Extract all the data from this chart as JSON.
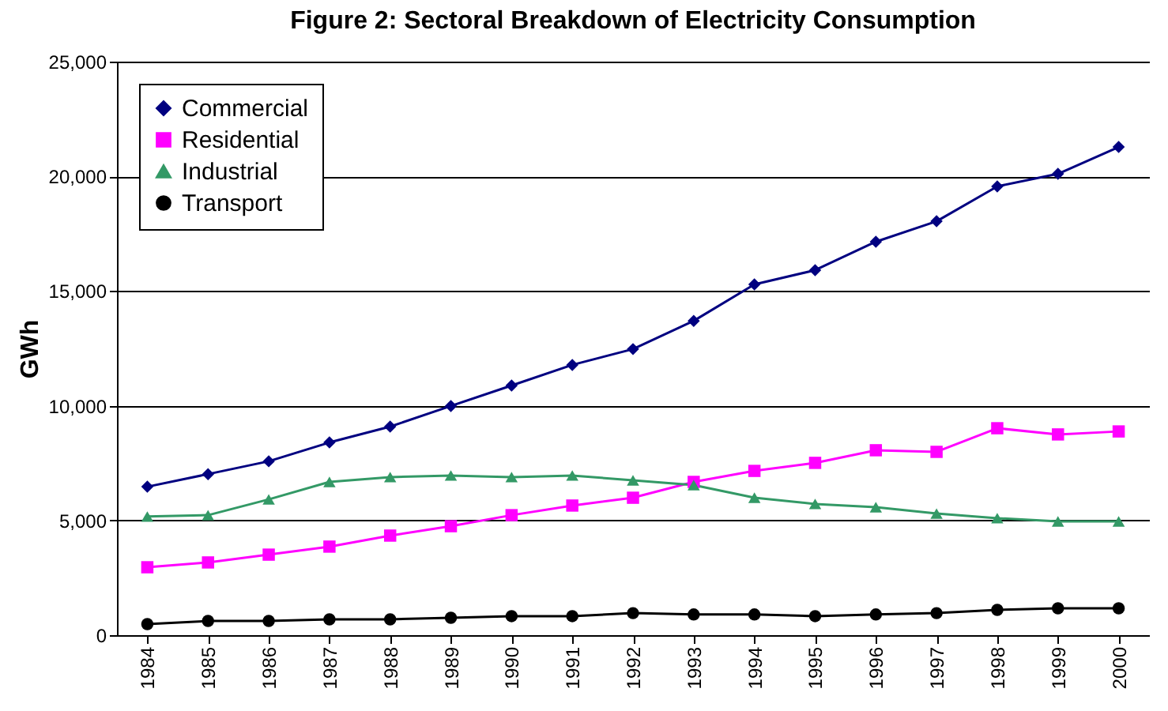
{
  "chart_data": {
    "type": "line",
    "title": "Figure 2: Sectoral Breakdown of Electricity Consumption",
    "ylabel": "GWh",
    "categories": [
      "1984",
      "1985",
      "1986",
      "1987",
      "1988",
      "1989",
      "1990",
      "1991",
      "1992",
      "1993",
      "1994",
      "1995",
      "1996",
      "1997",
      "1998",
      "1999",
      "2000"
    ],
    "series": [
      {
        "name": "Commercial",
        "color": "#000080",
        "marker": "diamond",
        "values": [
          6470,
          7020,
          7580,
          8400,
          9090,
          9990,
          10880,
          11780,
          12470,
          13700,
          15290,
          15910,
          17150,
          18040,
          19560,
          20110,
          21280
        ]
      },
      {
        "name": "Residential",
        "color": "#ff00ff",
        "marker": "square",
        "values": [
          2960,
          3170,
          3510,
          3860,
          4340,
          4750,
          5230,
          5650,
          5990,
          6680,
          7160,
          7510,
          8060,
          7990,
          9020,
          8750,
          8880
        ]
      },
      {
        "name": "Industrial",
        "color": "#339966",
        "marker": "triangle",
        "values": [
          5170,
          5230,
          5920,
          6680,
          6890,
          6960,
          6890,
          6960,
          6750,
          6540,
          5990,
          5720,
          5580,
          5300,
          5100,
          4960,
          4960
        ]
      },
      {
        "name": "Transport",
        "color": "#000000",
        "marker": "circle",
        "values": [
          480,
          620,
          620,
          690,
          690,
          760,
          830,
          830,
          960,
          900,
          900,
          830,
          900,
          960,
          1100,
          1170,
          1170
        ]
      }
    ],
    "ylim": [
      0,
      25000
    ],
    "yticks": [
      0,
      {
        "value": 5000,
        "label": "5,000"
      },
      {
        "value": 10000,
        "label": "10,000"
      },
      {
        "value": 15000,
        "label": "15,000"
      },
      {
        "value": 20000,
        "label": "20,000"
      },
      {
        "value": 25000,
        "label": "25,000"
      }
    ],
    "grid": "y",
    "legend": "top left"
  }
}
